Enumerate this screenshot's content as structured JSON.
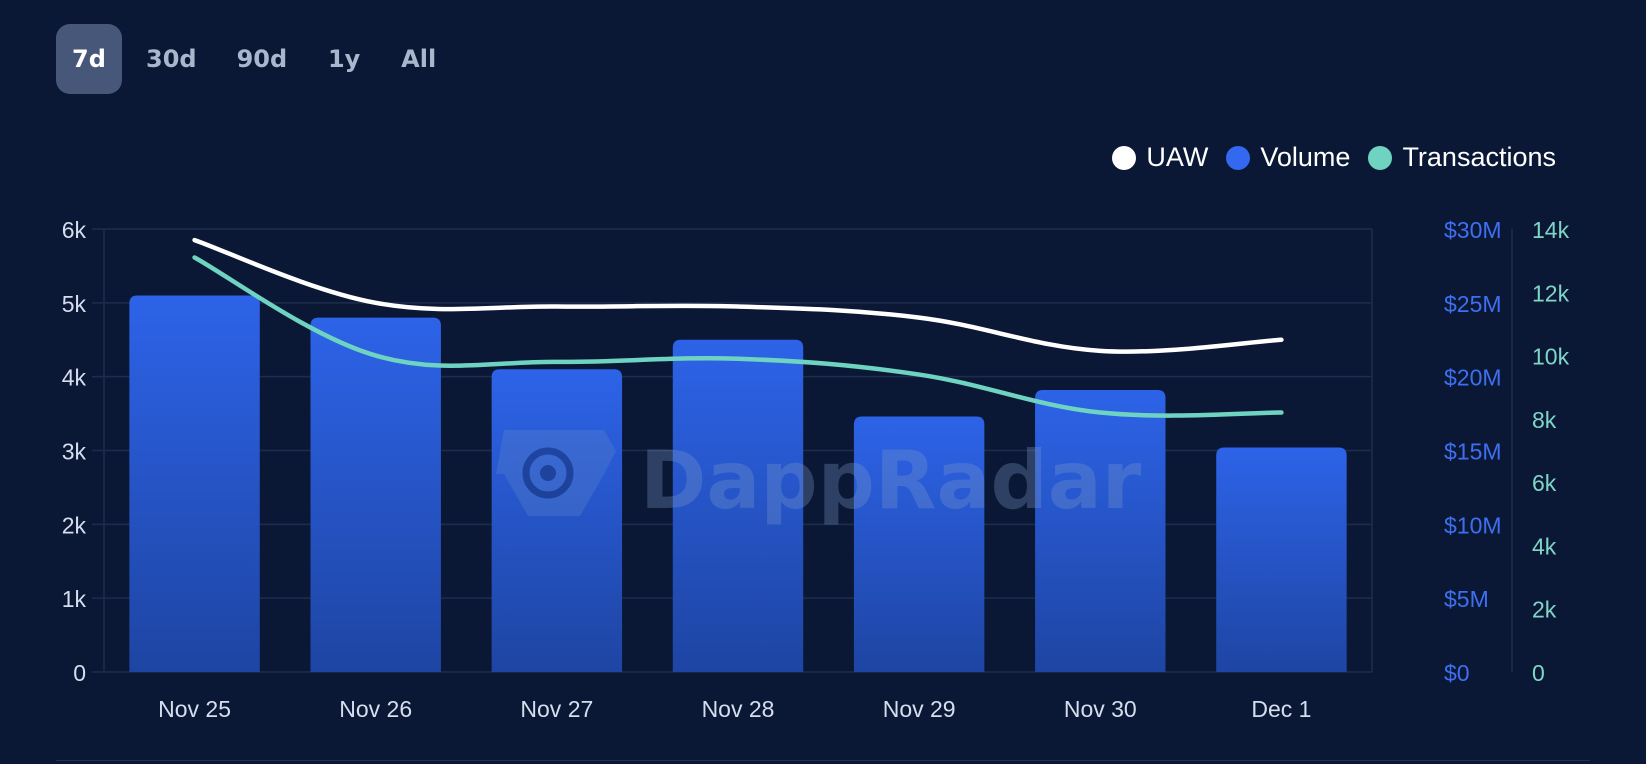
{
  "range_tabs": [
    {
      "label": "7d",
      "active": true
    },
    {
      "label": "30d",
      "active": false
    },
    {
      "label": "90d",
      "active": false
    },
    {
      "label": "1y",
      "active": false
    },
    {
      "label": "All",
      "active": false
    }
  ],
  "legend": [
    {
      "label": "UAW",
      "color": "#ffffff"
    },
    {
      "label": "Volume",
      "color": "#3368f0"
    },
    {
      "label": "Transactions",
      "color": "#6fd3c1"
    }
  ],
  "watermark": "DappRadar",
  "chart_data": {
    "type": "bar",
    "categories": [
      "Nov 25",
      "Nov 26",
      "Nov 27",
      "Nov 28",
      "Nov 29",
      "Nov 30",
      "Dec 1"
    ],
    "series": [
      {
        "name": "Volume",
        "type": "bar",
        "axis": "volume",
        "color": "#3368f0",
        "values": [
          25.5,
          24.0,
          20.5,
          22.5,
          17.3,
          19.1,
          15.2
        ]
      },
      {
        "name": "UAW",
        "type": "line",
        "axis": "uaw",
        "color": "#ffffff",
        "values": [
          5850,
          5000,
          4950,
          4950,
          4800,
          4350,
          4500
        ]
      },
      {
        "name": "Transactions",
        "type": "line",
        "axis": "transactions",
        "color": "#6fd3c1",
        "values": [
          13100,
          10000,
          9800,
          9900,
          9400,
          8200,
          8200
        ]
      }
    ],
    "axes": {
      "uaw": {
        "ticks": [
          "0",
          "1k",
          "2k",
          "3k",
          "4k",
          "5k",
          "6k"
        ],
        "ylim": [
          0,
          6000
        ],
        "color": "#d6deee"
      },
      "volume": {
        "ticks": [
          "$0",
          "$5M",
          "$10M",
          "$15M",
          "$20M",
          "$25M",
          "$30M"
        ],
        "ylim": [
          0,
          30
        ],
        "unit": "$M",
        "color": "#3d6ff0"
      },
      "transactions": {
        "ticks": [
          "0",
          "2k",
          "4k",
          "6k",
          "8k",
          "10k",
          "12k",
          "14k"
        ],
        "ylim": [
          0,
          14000
        ],
        "color": "#7fd6c6"
      }
    },
    "grid": true,
    "legend_position": "top-right"
  }
}
